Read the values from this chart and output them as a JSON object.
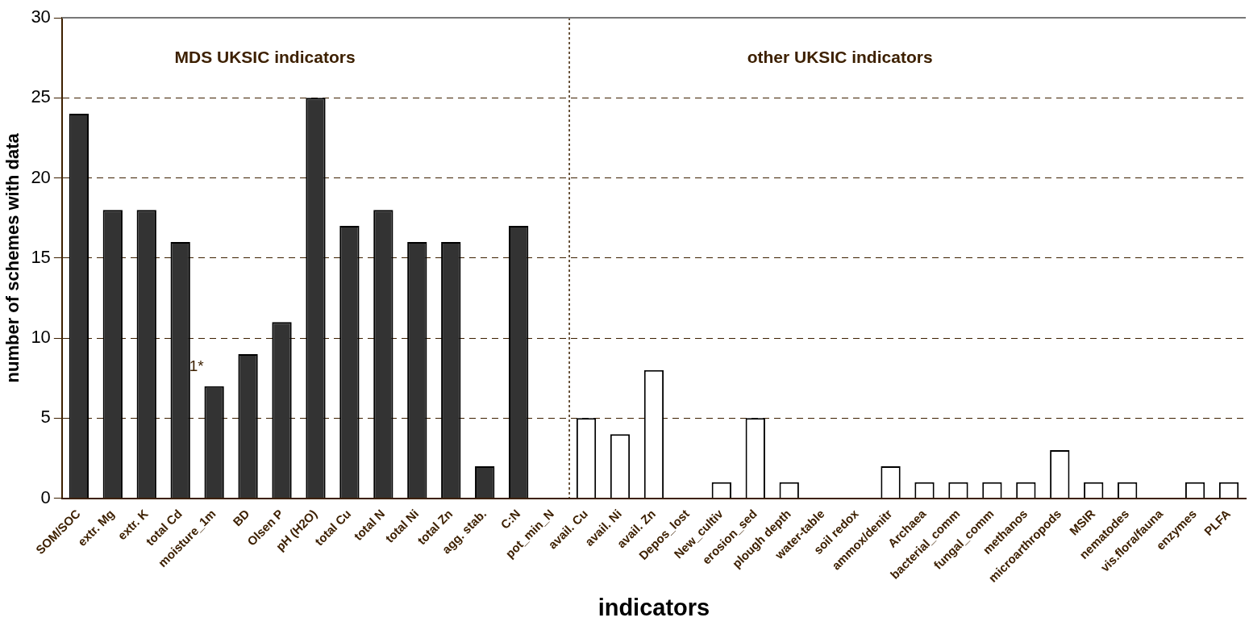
{
  "chart_data": {
    "type": "bar",
    "xlabel": "indicators",
    "ylabel": "number of schemes with data",
    "categories": [
      "SOM/SOC",
      "extr. Mg",
      "extr. K",
      "total Cd",
      "moisture_1m",
      "BD",
      "Olsen P",
      "pH (H2O)",
      "total Cu",
      "total N",
      "total Ni",
      "total Zn",
      "agg. stab.",
      "C:N",
      "pot_min_N",
      "avail. Cu",
      "avail. Ni",
      "avail. Zn",
      "Depos_lost",
      "New_cultiv",
      "erosion_sed",
      "plough depth",
      "water-table",
      "soil redox",
      "ammox/denitr",
      "Archaea",
      "bacterial_comm",
      "fungal_comm",
      "methanos",
      "microarthropods",
      "MSIR",
      "nematodes",
      "vis.flora/fauna",
      "enzymes",
      "PLFA"
    ],
    "series": [
      {
        "color": "#333333",
        "values": [
          24,
          18,
          18,
          16,
          7,
          9,
          11,
          25,
          17,
          18,
          16,
          16,
          2,
          17,
          0,
          null,
          null,
          null,
          null,
          null,
          null,
          null,
          null,
          null,
          null,
          null,
          null,
          null,
          null,
          null,
          null,
          null,
          null,
          null,
          null
        ]
      },
      {
        "color": "#ffffff",
        "values": [
          null,
          null,
          null,
          null,
          null,
          null,
          null,
          null,
          null,
          null,
          null,
          null,
          null,
          null,
          null,
          5,
          4,
          8,
          0,
          1,
          5,
          1,
          0,
          0,
          2,
          1,
          1,
          1,
          1,
          3,
          1,
          1,
          0,
          1,
          1
        ]
      }
    ],
    "ylim": [
      0,
      30
    ],
    "yticks": [
      0,
      5,
      10,
      15,
      20,
      25,
      30
    ],
    "grid": "y",
    "legend": false,
    "ref_lines": [
      {
        "axis": "x",
        "value": "avail. Cu",
        "color": "#3d2000",
        "line_style": "dotted"
      }
    ],
    "annotations": [
      "MDS UKSIC indicators",
      "other UKSIC indicators",
      {
        "text": "1*",
        "x": "moisture_1m",
        "y": 7
      }
    ]
  }
}
